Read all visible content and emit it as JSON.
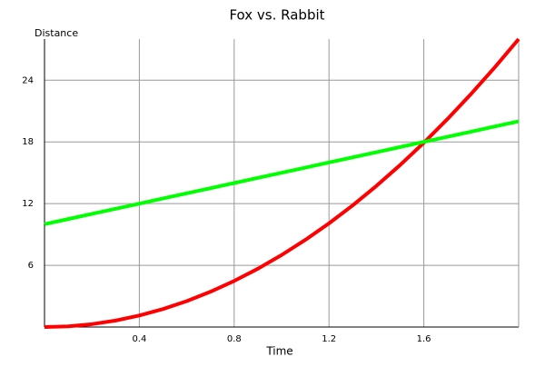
{
  "chart_data": {
    "type": "line",
    "title": "Fox vs. Rabbit",
    "x_label": "Time",
    "y_label": "Distance",
    "x": [
      0,
      0.1,
      0.2,
      0.3,
      0.4,
      0.5,
      0.6,
      0.7,
      0.8,
      0.9,
      1.0,
      1.1,
      1.2,
      1.3,
      1.4,
      1.5,
      1.6,
      1.7,
      1.8,
      1.9,
      2.0
    ],
    "series": [
      {
        "color": "#ff0000",
        "values": [
          0,
          0.07,
          0.28,
          0.63,
          1.12,
          1.75,
          2.52,
          3.43,
          4.48,
          5.67,
          7,
          8.47,
          10.08,
          11.83,
          13.72,
          15.75,
          17.92,
          20.23,
          22.68,
          25.27,
          28
        ]
      },
      {
        "color": "#00ff00",
        "values": [
          10,
          10.5,
          11,
          11.5,
          12,
          12.5,
          13,
          13.5,
          14,
          14.5,
          15,
          15.5,
          16,
          16.5,
          17,
          17.5,
          18,
          18.5,
          19,
          19.5,
          20
        ]
      }
    ],
    "xlim": [
      0,
      2
    ],
    "xticks": [
      0.4,
      0.8,
      1.2,
      1.6
    ],
    "ylim": [
      0,
      28
    ],
    "yticks": [
      6,
      12,
      18,
      24
    ],
    "grid": true
  }
}
